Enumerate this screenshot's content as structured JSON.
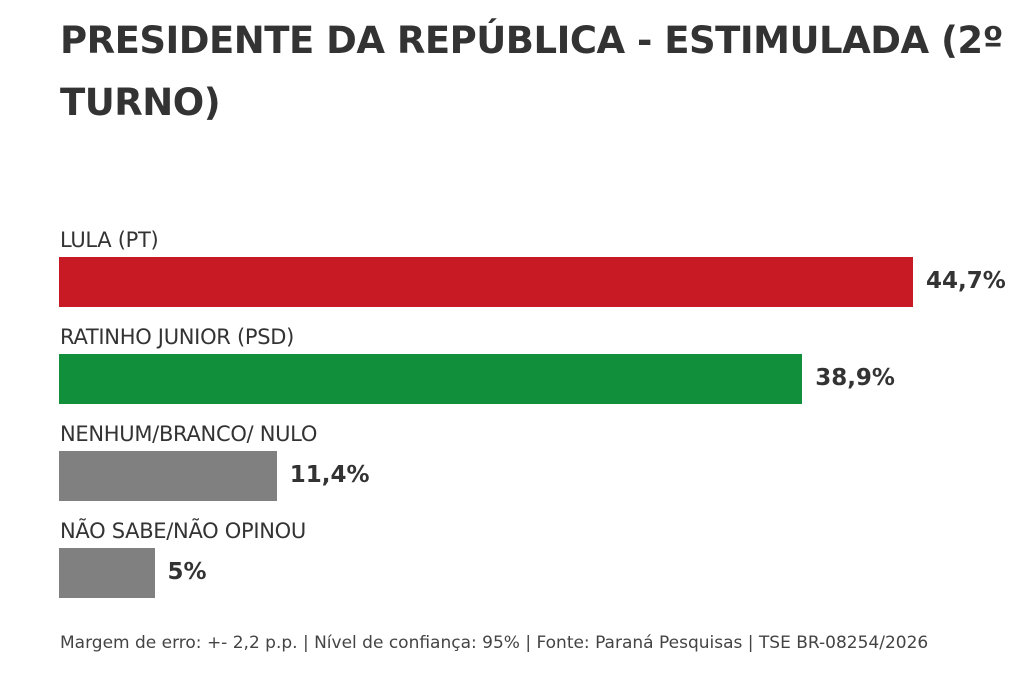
{
  "chart_data": {
    "type": "bar",
    "orientation": "horizontal",
    "title": "PRESIDENTE DA REPÚBLICA - ESTIMULADA (2º TURNO)",
    "categories": [
      "LULA (PT)",
      "RATINHO JUNIOR (PSD)",
      "NENHUM/BRANCO/ NULO",
      "NÃO SABE/NÃO OPINOU"
    ],
    "values": [
      44.7,
      38.9,
      11.4,
      5
    ],
    "value_labels": [
      "44,7%",
      "38,9%",
      "11,4%",
      "5%"
    ],
    "colors": [
      "#C81A24",
      "#128F3A",
      "#808080",
      "#808080"
    ],
    "unit": "%",
    "xlim": [
      0,
      44.7
    ],
    "grid": false,
    "legend": "none"
  },
  "footer": "Margem de erro: +- 2,2 p.p. | Nível de confiança: 95% | Fonte: Paraná Pesquisas | TSE BR-08254/2026"
}
